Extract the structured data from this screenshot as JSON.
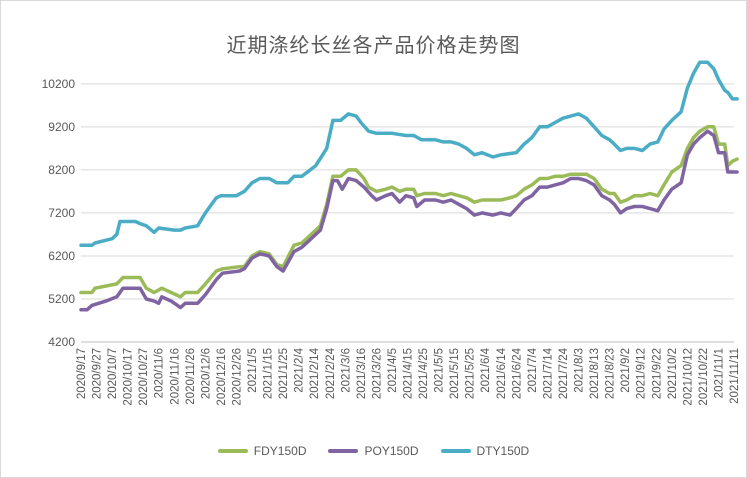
{
  "chart_data": {
    "type": "line",
    "title": "近期涤纶长丝各产品价格走势图",
    "ylim": [
      4200,
      10800
    ],
    "yticks": [
      4200,
      5200,
      6200,
      7200,
      8200,
      9200,
      10200
    ],
    "ytick_labels": [
      "4200",
      "5200",
      "6200",
      "7200",
      "8200",
      "9200",
      "10200"
    ],
    "x_tick_labels": [
      "2020/9/17",
      "2020/9/27",
      "2020/10/7",
      "2020/10/17",
      "2020/10/27",
      "2020/11/6",
      "2020/11/16",
      "2020/11/26",
      "2020/12/6",
      "2020/12/16",
      "2020/12/26",
      "2021/1/5",
      "2021/1/15",
      "2021/1/25",
      "2021/2/4",
      "2021/2/14",
      "2021/2/24",
      "2021/3/6",
      "2021/3/16",
      "2021/3/26",
      "2021/4/5",
      "2021/4/15",
      "2021/4/25",
      "2021/5/5",
      "2021/5/15",
      "2021/5/25",
      "2021/6/4",
      "2021/6/14",
      "2021/6/24",
      "2021/7/4",
      "2021/7/14",
      "2021/7/24",
      "2021/8/3",
      "2021/8/13",
      "2021/8/23",
      "2021/9/2",
      "2021/9/12",
      "2021/9/22",
      "2021/10/2",
      "2021/10/12",
      "2021/10/22",
      "2021/11/1",
      "2021/11/11"
    ],
    "grid": "horizontal",
    "legend_position": "bottom",
    "series": [
      {
        "name": "FDY150D",
        "color": "#9BBB59",
        "points": [
          [
            "2020/9/17",
            5350
          ],
          [
            "2020/9/24",
            5350
          ],
          [
            "2020/9/26",
            5450
          ],
          [
            "2020/10/10",
            5550
          ],
          [
            "2020/10/14",
            5700
          ],
          [
            "2020/10/25",
            5700
          ],
          [
            "2020/10/29",
            5450
          ],
          [
            "2020/11/3",
            5350
          ],
          [
            "2020/11/8",
            5450
          ],
          [
            "2020/11/14",
            5350
          ],
          [
            "2020/11/20",
            5250
          ],
          [
            "2020/11/23",
            5350
          ],
          [
            "2020/12/1",
            5350
          ],
          [
            "2020/12/6",
            5550
          ],
          [
            "2020/12/13",
            5850
          ],
          [
            "2020/12/17",
            5900
          ],
          [
            "2020/12/28",
            5950
          ],
          [
            "2020/12/31",
            5950
          ],
          [
            "2021/1/5",
            6200
          ],
          [
            "2021/1/10",
            6300
          ],
          [
            "2021/1/16",
            6250
          ],
          [
            "2021/1/21",
            6000
          ],
          [
            "2021/1/25",
            5950
          ],
          [
            "2021/2/1",
            6450
          ],
          [
            "2021/2/6",
            6500
          ],
          [
            "2021/2/18",
            6900
          ],
          [
            "2021/2/22",
            7400
          ],
          [
            "2021/2/26",
            8050
          ],
          [
            "2021/3/3",
            8050
          ],
          [
            "2021/3/8",
            8200
          ],
          [
            "2021/3/13",
            8200
          ],
          [
            "2021/3/18",
            8000
          ],
          [
            "2021/3/21",
            7800
          ],
          [
            "2021/3/26",
            7700
          ],
          [
            "2021/4/1",
            7750
          ],
          [
            "2021/4/5",
            7800
          ],
          [
            "2021/4/10",
            7700
          ],
          [
            "2021/4/14",
            7750
          ],
          [
            "2021/4/19",
            7750
          ],
          [
            "2021/4/21",
            7600
          ],
          [
            "2021/4/26",
            7650
          ],
          [
            "2021/5/3",
            7650
          ],
          [
            "2021/5/8",
            7600
          ],
          [
            "2021/5/13",
            7650
          ],
          [
            "2021/5/18",
            7600
          ],
          [
            "2021/5/23",
            7550
          ],
          [
            "2021/5/28",
            7450
          ],
          [
            "2021/6/2",
            7500
          ],
          [
            "2021/6/9",
            7500
          ],
          [
            "2021/6/14",
            7500
          ],
          [
            "2021/6/20",
            7550
          ],
          [
            "2021/6/24",
            7600
          ],
          [
            "2021/6/29",
            7750
          ],
          [
            "2021/7/4",
            7850
          ],
          [
            "2021/7/9",
            8000
          ],
          [
            "2021/7/14",
            8000
          ],
          [
            "2021/7/19",
            8050
          ],
          [
            "2021/7/24",
            8050
          ],
          [
            "2021/7/29",
            8100
          ],
          [
            "2021/8/3",
            8100
          ],
          [
            "2021/8/8",
            8100
          ],
          [
            "2021/8/13",
            8000
          ],
          [
            "2021/8/18",
            7750
          ],
          [
            "2021/8/23",
            7650
          ],
          [
            "2021/8/26",
            7650
          ],
          [
            "2021/8/30",
            7450
          ],
          [
            "2021/9/3",
            7500
          ],
          [
            "2021/9/8",
            7600
          ],
          [
            "2021/9/13",
            7600
          ],
          [
            "2021/9/18",
            7650
          ],
          [
            "2021/9/23",
            7600
          ],
          [
            "2021/9/27",
            7850
          ],
          [
            "2021/10/2",
            8150
          ],
          [
            "2021/10/8",
            8300
          ],
          [
            "2021/10/12",
            8700
          ],
          [
            "2021/10/16",
            8950
          ],
          [
            "2021/10/20",
            9100
          ],
          [
            "2021/10/25",
            9200
          ],
          [
            "2021/10/29",
            9200
          ],
          [
            "2021/11/1",
            8800
          ],
          [
            "2021/11/5",
            8800
          ],
          [
            "2021/11/7",
            8300
          ],
          [
            "2021/11/10",
            8400
          ],
          [
            "2021/11/13",
            8450
          ]
        ]
      },
      {
        "name": "POY150D",
        "color": "#8064A2",
        "points": [
          [
            "2020/9/17",
            4950
          ],
          [
            "2020/9/21",
            4950
          ],
          [
            "2020/9/24",
            5050
          ],
          [
            "2020/10/3",
            5150
          ],
          [
            "2020/10/10",
            5250
          ],
          [
            "2020/10/14",
            5450
          ],
          [
            "2020/10/25",
            5450
          ],
          [
            "2020/10/29",
            5200
          ],
          [
            "2020/11/3",
            5150
          ],
          [
            "2020/11/6",
            5100
          ],
          [
            "2020/11/8",
            5250
          ],
          [
            "2020/11/14",
            5150
          ],
          [
            "2020/11/20",
            5000
          ],
          [
            "2020/11/23",
            5100
          ],
          [
            "2020/12/1",
            5100
          ],
          [
            "2020/12/6",
            5300
          ],
          [
            "2020/12/13",
            5650
          ],
          [
            "2020/12/17",
            5800
          ],
          [
            "2020/12/28",
            5850
          ],
          [
            "2020/12/31",
            5900
          ],
          [
            "2021/1/5",
            6150
          ],
          [
            "2021/1/10",
            6250
          ],
          [
            "2021/1/16",
            6200
          ],
          [
            "2021/1/21",
            5950
          ],
          [
            "2021/1/25",
            5850
          ],
          [
            "2021/2/1",
            6300
          ],
          [
            "2021/2/6",
            6400
          ],
          [
            "2021/2/18",
            6800
          ],
          [
            "2021/2/22",
            7300
          ],
          [
            "2021/2/26",
            7950
          ],
          [
            "2021/3/1",
            7950
          ],
          [
            "2021/3/4",
            7750
          ],
          [
            "2021/3/8",
            8000
          ],
          [
            "2021/3/13",
            7950
          ],
          [
            "2021/3/18",
            7800
          ],
          [
            "2021/3/23",
            7600
          ],
          [
            "2021/3/26",
            7500
          ],
          [
            "2021/4/1",
            7600
          ],
          [
            "2021/4/5",
            7650
          ],
          [
            "2021/4/10",
            7450
          ],
          [
            "2021/4/14",
            7600
          ],
          [
            "2021/4/19",
            7550
          ],
          [
            "2021/4/21",
            7350
          ],
          [
            "2021/4/26",
            7500
          ],
          [
            "2021/5/3",
            7500
          ],
          [
            "2021/5/8",
            7450
          ],
          [
            "2021/5/13",
            7500
          ],
          [
            "2021/5/18",
            7400
          ],
          [
            "2021/5/23",
            7300
          ],
          [
            "2021/5/28",
            7150
          ],
          [
            "2021/6/2",
            7200
          ],
          [
            "2021/6/9",
            7150
          ],
          [
            "2021/6/14",
            7200
          ],
          [
            "2021/6/20",
            7150
          ],
          [
            "2021/6/24",
            7300
          ],
          [
            "2021/6/29",
            7500
          ],
          [
            "2021/7/4",
            7600
          ],
          [
            "2021/7/9",
            7800
          ],
          [
            "2021/7/14",
            7800
          ],
          [
            "2021/7/19",
            7850
          ],
          [
            "2021/7/24",
            7900
          ],
          [
            "2021/7/29",
            8000
          ],
          [
            "2021/8/3",
            8000
          ],
          [
            "2021/8/8",
            7950
          ],
          [
            "2021/8/13",
            7850
          ],
          [
            "2021/8/18",
            7600
          ],
          [
            "2021/8/23",
            7500
          ],
          [
            "2021/8/26",
            7400
          ],
          [
            "2021/8/30",
            7200
          ],
          [
            "2021/9/3",
            7300
          ],
          [
            "2021/9/8",
            7350
          ],
          [
            "2021/9/13",
            7350
          ],
          [
            "2021/9/18",
            7300
          ],
          [
            "2021/9/23",
            7250
          ],
          [
            "2021/9/27",
            7500
          ],
          [
            "2021/10/2",
            7750
          ],
          [
            "2021/10/8",
            7900
          ],
          [
            "2021/10/12",
            8550
          ],
          [
            "2021/10/16",
            8800
          ],
          [
            "2021/10/20",
            8950
          ],
          [
            "2021/10/25",
            9100
          ],
          [
            "2021/10/29",
            9000
          ],
          [
            "2021/11/1",
            8600
          ],
          [
            "2021/11/5",
            8600
          ],
          [
            "2021/11/7",
            8150
          ],
          [
            "2021/11/10",
            8150
          ],
          [
            "2021/11/13",
            8150
          ]
        ]
      },
      {
        "name": "DTY150D",
        "color": "#4BACC6",
        "points": [
          [
            "2020/9/17",
            6450
          ],
          [
            "2020/9/24",
            6450
          ],
          [
            "2020/9/26",
            6500
          ],
          [
            "2020/10/7",
            6600
          ],
          [
            "2020/10/10",
            6700
          ],
          [
            "2020/10/12",
            7000
          ],
          [
            "2020/10/22",
            7000
          ],
          [
            "2020/10/25",
            6950
          ],
          [
            "2020/10/29",
            6900
          ],
          [
            "2020/11/3",
            6750
          ],
          [
            "2020/11/6",
            6850
          ],
          [
            "2020/11/16",
            6800
          ],
          [
            "2020/11/20",
            6800
          ],
          [
            "2020/11/23",
            6850
          ],
          [
            "2020/12/1",
            6900
          ],
          [
            "2020/12/6",
            7200
          ],
          [
            "2020/12/13",
            7550
          ],
          [
            "2020/12/16",
            7600
          ],
          [
            "2020/12/26",
            7600
          ],
          [
            "2020/12/31",
            7700
          ],
          [
            "2021/1/5",
            7900
          ],
          [
            "2021/1/10",
            8000
          ],
          [
            "2021/1/16",
            8000
          ],
          [
            "2021/1/21",
            7900
          ],
          [
            "2021/1/28",
            7900
          ],
          [
            "2021/2/1",
            8050
          ],
          [
            "2021/2/6",
            8050
          ],
          [
            "2021/2/15",
            8300
          ],
          [
            "2021/2/22",
            8700
          ],
          [
            "2021/2/26",
            9350
          ],
          [
            "2021/3/3",
            9350
          ],
          [
            "2021/3/8",
            9500
          ],
          [
            "2021/3/13",
            9450
          ],
          [
            "2021/3/16",
            9300
          ],
          [
            "2021/3/21",
            9100
          ],
          [
            "2021/3/26",
            9050
          ],
          [
            "2021/4/5",
            9050
          ],
          [
            "2021/4/14",
            9000
          ],
          [
            "2021/4/19",
            9000
          ],
          [
            "2021/4/24",
            8900
          ],
          [
            "2021/5/3",
            8900
          ],
          [
            "2021/5/8",
            8850
          ],
          [
            "2021/5/13",
            8850
          ],
          [
            "2021/5/18",
            8800
          ],
          [
            "2021/5/23",
            8700
          ],
          [
            "2021/5/28",
            8550
          ],
          [
            "2021/6/2",
            8600
          ],
          [
            "2021/6/9",
            8500
          ],
          [
            "2021/6/14",
            8550
          ],
          [
            "2021/6/24",
            8600
          ],
          [
            "2021/6/29",
            8800
          ],
          [
            "2021/7/4",
            8950
          ],
          [
            "2021/7/9",
            9200
          ],
          [
            "2021/7/14",
            9200
          ],
          [
            "2021/7/19",
            9300
          ],
          [
            "2021/7/24",
            9400
          ],
          [
            "2021/7/29",
            9450
          ],
          [
            "2021/8/3",
            9500
          ],
          [
            "2021/8/8",
            9400
          ],
          [
            "2021/8/13",
            9200
          ],
          [
            "2021/8/18",
            9000
          ],
          [
            "2021/8/23",
            8900
          ],
          [
            "2021/8/26",
            8800
          ],
          [
            "2021/8/30",
            8650
          ],
          [
            "2021/9/3",
            8700
          ],
          [
            "2021/9/8",
            8700
          ],
          [
            "2021/9/13",
            8650
          ],
          [
            "2021/9/18",
            8800
          ],
          [
            "2021/9/23",
            8850
          ],
          [
            "2021/9/27",
            9150
          ],
          [
            "2021/10/2",
            9350
          ],
          [
            "2021/10/8",
            9550
          ],
          [
            "2021/10/12",
            10100
          ],
          [
            "2021/10/16",
            10450
          ],
          [
            "2021/10/20",
            10700
          ],
          [
            "2021/10/25",
            10700
          ],
          [
            "2021/10/29",
            10550
          ],
          [
            "2021/11/1",
            10300
          ],
          [
            "2021/11/5",
            10050
          ],
          [
            "2021/11/7",
            10000
          ],
          [
            "2021/11/10",
            9850
          ],
          [
            "2021/11/13",
            9850
          ]
        ]
      }
    ]
  }
}
